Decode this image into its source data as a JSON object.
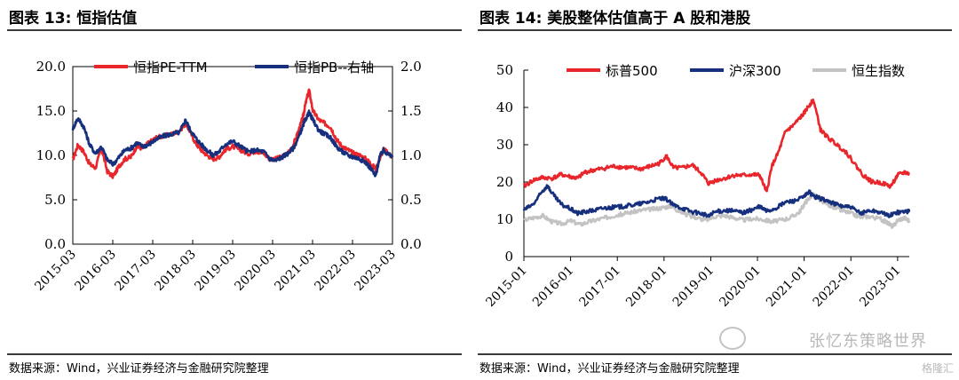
{
  "left_panel": {
    "title": "图表 13:  恒指估值",
    "source": "数据来源：Wind，兴业证券经济与金融研究院整理"
  },
  "right_panel": {
    "title": "图表 14:  美股整体估值高于 A 股和港股",
    "source": "数据来源：Wind，兴业证券经济与金融研究院整理"
  },
  "watermark": {
    "text": "张忆东策略世界",
    "logo_text": "格隆汇"
  },
  "chart_data": [
    {
      "type": "line",
      "title": "",
      "x_ticks": [
        "2015-03",
        "2016-03",
        "2017-03",
        "2018-03",
        "2019-03",
        "2020-03",
        "2021-03",
        "2022-03",
        "2023-03"
      ],
      "x_range": [
        2015.17,
        2023.33
      ],
      "y_left": {
        "range": [
          0,
          20
        ],
        "ticks": [
          "0.0",
          "5.0",
          "10.0",
          "15.0",
          "20.0"
        ]
      },
      "y_right": {
        "range": [
          0,
          2
        ],
        "ticks": [
          "0.0",
          "0.5",
          "1.0",
          "1.5",
          "2.0"
        ]
      },
      "legend_position": "top",
      "series": [
        {
          "name": "恒指PE-TTM",
          "axis": "left",
          "color": "#e8262b",
          "x": [
            2015.17,
            2015.3,
            2015.45,
            2015.6,
            2015.75,
            2015.9,
            2016.05,
            2016.2,
            2016.35,
            2016.5,
            2016.65,
            2016.8,
            2016.95,
            2017.1,
            2017.3,
            2017.5,
            2017.7,
            2017.9,
            2018.05,
            2018.15,
            2018.3,
            2018.45,
            2018.6,
            2018.75,
            2018.9,
            2019.05,
            2019.25,
            2019.45,
            2019.65,
            2019.85,
            2020.05,
            2020.2,
            2020.35,
            2020.5,
            2020.65,
            2020.8,
            2020.95,
            2021.05,
            2021.1,
            2021.2,
            2021.3,
            2021.45,
            2021.6,
            2021.75,
            2021.9,
            2022.05,
            2022.2,
            2022.35,
            2022.5,
            2022.65,
            2022.8,
            2022.9,
            2023.0,
            2023.1,
            2023.2,
            2023.33
          ],
          "y": [
            9.5,
            11.2,
            10.4,
            9.0,
            8.6,
            10.8,
            8.2,
            7.6,
            8.8,
            9.6,
            9.8,
            11.0,
            10.8,
            11.4,
            12.0,
            12.2,
            12.4,
            12.8,
            13.6,
            12.8,
            11.4,
            10.6,
            10.0,
            9.6,
            9.8,
            10.6,
            11.0,
            10.6,
            10.2,
            10.5,
            10.2,
            9.6,
            9.6,
            9.8,
            10.2,
            11.2,
            13.0,
            14.4,
            15.6,
            17.4,
            15.0,
            14.0,
            13.6,
            13.2,
            11.8,
            11.0,
            10.6,
            10.2,
            10.0,
            9.6,
            9.0,
            8.4,
            9.6,
            10.6,
            10.4,
            9.8
          ]
        },
        {
          "name": "恒指PB--右轴",
          "axis": "right",
          "color": "#17307e",
          "x": [
            2015.17,
            2015.3,
            2015.45,
            2015.6,
            2015.75,
            2015.9,
            2016.05,
            2016.2,
            2016.35,
            2016.5,
            2016.65,
            2016.8,
            2016.95,
            2017.1,
            2017.3,
            2017.5,
            2017.7,
            2017.9,
            2018.05,
            2018.15,
            2018.3,
            2018.45,
            2018.6,
            2018.75,
            2018.9,
            2019.05,
            2019.25,
            2019.45,
            2019.65,
            2019.85,
            2020.05,
            2020.2,
            2020.35,
            2020.5,
            2020.65,
            2020.8,
            2020.95,
            2021.05,
            2021.1,
            2021.2,
            2021.3,
            2021.45,
            2021.6,
            2021.75,
            2021.9,
            2022.05,
            2022.2,
            2022.35,
            2022.5,
            2022.65,
            2022.8,
            2022.9,
            2023.0,
            2023.1,
            2023.2,
            2023.33
          ],
          "y": [
            1.3,
            1.42,
            1.32,
            1.12,
            1.02,
            1.1,
            0.95,
            0.9,
            0.98,
            1.06,
            1.08,
            1.14,
            1.1,
            1.12,
            1.18,
            1.22,
            1.24,
            1.26,
            1.4,
            1.3,
            1.2,
            1.12,
            1.06,
            1.0,
            1.04,
            1.12,
            1.16,
            1.1,
            1.04,
            1.06,
            1.04,
            0.96,
            0.94,
            0.98,
            1.02,
            1.08,
            1.22,
            1.34,
            1.4,
            1.48,
            1.4,
            1.28,
            1.24,
            1.2,
            1.1,
            1.04,
            1.0,
            0.98,
            0.96,
            0.92,
            0.84,
            0.76,
            0.98,
            1.06,
            1.02,
            0.98
          ]
        }
      ]
    },
    {
      "type": "line",
      "title": "",
      "x_ticks": [
        "2015-01",
        "2016-01",
        "2017-01",
        "2018-01",
        "2019-01",
        "2020-01",
        "2021-01",
        "2022-01",
        "2023-01"
      ],
      "x_range": [
        2015.0,
        2023.25
      ],
      "y": {
        "range": [
          0,
          50
        ],
        "ticks": [
          "0",
          "10",
          "20",
          "30",
          "40",
          "50"
        ]
      },
      "legend_position": "top",
      "series": [
        {
          "name": "标普500",
          "color": "#e8262b",
          "x": [
            2015.0,
            2015.2,
            2015.4,
            2015.6,
            2015.8,
            2016.0,
            2016.15,
            2016.3,
            2016.5,
            2016.7,
            2016.9,
            2017.1,
            2017.3,
            2017.5,
            2017.7,
            2017.9,
            2018.05,
            2018.2,
            2018.4,
            2018.6,
            2018.8,
            2018.95,
            2019.1,
            2019.3,
            2019.5,
            2019.7,
            2019.9,
            2020.05,
            2020.2,
            2020.3,
            2020.45,
            2020.6,
            2020.75,
            2020.9,
            2021.0,
            2021.1,
            2021.2,
            2021.35,
            2021.5,
            2021.7,
            2021.9,
            2022.05,
            2022.25,
            2022.45,
            2022.65,
            2022.85,
            2023.0,
            2023.15,
            2023.25
          ],
          "y": [
            18.8,
            20.5,
            21.2,
            21.0,
            22.0,
            21.4,
            21.0,
            22.6,
            23.2,
            23.6,
            24.2,
            24.0,
            23.8,
            23.5,
            24.2,
            25.0,
            27.0,
            23.8,
            23.8,
            24.6,
            22.4,
            19.6,
            20.4,
            21.0,
            21.8,
            21.8,
            22.0,
            21.8,
            17.2,
            24.0,
            28.0,
            33.5,
            35.0,
            37.0,
            38.5,
            40.5,
            42.0,
            34.0,
            32.0,
            30.0,
            28.0,
            25.4,
            22.0,
            20.0,
            19.8,
            18.8,
            21.8,
            22.6,
            22.2
          ]
        },
        {
          "name": "沪深300",
          "color": "#17307e",
          "x": [
            2015.0,
            2015.2,
            2015.4,
            2015.5,
            2015.65,
            2015.8,
            2016.0,
            2016.15,
            2016.3,
            2016.5,
            2016.7,
            2016.9,
            2017.1,
            2017.3,
            2017.5,
            2017.7,
            2017.9,
            2018.05,
            2018.2,
            2018.4,
            2018.6,
            2018.8,
            2018.95,
            2019.1,
            2019.3,
            2019.5,
            2019.7,
            2019.9,
            2020.05,
            2020.2,
            2020.4,
            2020.6,
            2020.8,
            2021.0,
            2021.1,
            2021.2,
            2021.4,
            2021.6,
            2021.8,
            2022.0,
            2022.2,
            2022.4,
            2022.6,
            2022.8,
            2023.0,
            2023.15,
            2023.25
          ],
          "y": [
            12.5,
            14.0,
            17.5,
            19.0,
            16.2,
            14.0,
            12.8,
            11.6,
            12.0,
            12.4,
            13.0,
            13.2,
            13.4,
            13.8,
            14.2,
            14.8,
            15.6,
            15.4,
            13.8,
            13.0,
            12.0,
            11.6,
            10.8,
            12.0,
            12.4,
            12.2,
            11.8,
            12.6,
            13.4,
            12.2,
            13.0,
            14.6,
            15.0,
            16.0,
            17.4,
            16.2,
            15.4,
            14.4,
            13.6,
            13.2,
            11.6,
            12.4,
            12.0,
            11.0,
            11.8,
            12.2,
            12.0
          ]
        },
        {
          "name": "恒生指数",
          "color": "#c3c3c3",
          "x": [
            2015.0,
            2015.2,
            2015.4,
            2015.6,
            2015.8,
            2016.0,
            2016.2,
            2016.4,
            2016.6,
            2016.8,
            2017.0,
            2017.2,
            2017.4,
            2017.6,
            2017.8,
            2018.0,
            2018.15,
            2018.3,
            2018.5,
            2018.7,
            2018.9,
            2019.1,
            2019.3,
            2019.5,
            2019.7,
            2019.9,
            2020.1,
            2020.3,
            2020.5,
            2020.7,
            2020.9,
            2021.0,
            2021.1,
            2021.2,
            2021.4,
            2021.6,
            2021.8,
            2022.0,
            2022.2,
            2022.4,
            2022.6,
            2022.8,
            2022.9,
            2023.0,
            2023.15,
            2023.25
          ],
          "y": [
            9.8,
            10.4,
            11.0,
            9.4,
            8.8,
            9.6,
            8.6,
            9.4,
            10.0,
            10.6,
            11.2,
            11.6,
            12.2,
            12.6,
            12.8,
            13.2,
            13.6,
            12.4,
            11.2,
            10.4,
            9.8,
            10.8,
            11.0,
            10.4,
            9.8,
            10.2,
            10.0,
            9.4,
            9.8,
            10.4,
            12.0,
            14.0,
            15.6,
            16.8,
            14.4,
            13.4,
            12.4,
            11.6,
            10.6,
            10.8,
            10.2,
            9.0,
            8.0,
            9.8,
            10.4,
            9.6
          ]
        }
      ]
    }
  ]
}
